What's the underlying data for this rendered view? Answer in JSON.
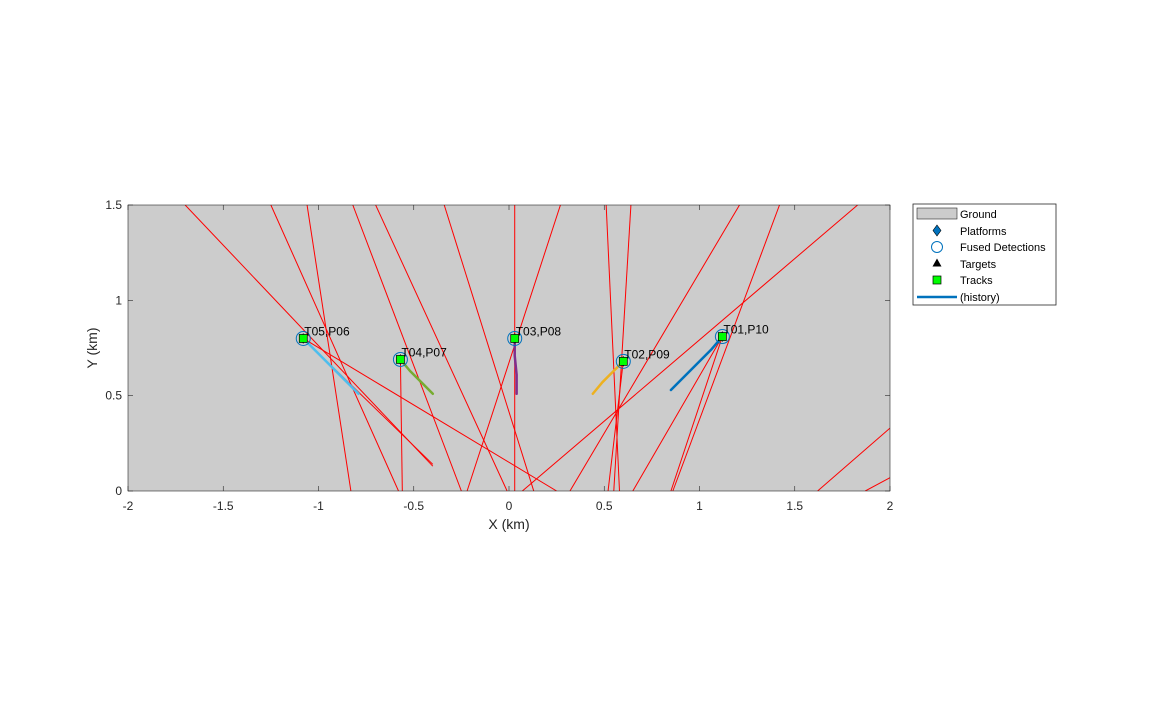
{
  "chart_data": {
    "type": "scatter",
    "xlabel": "X (km)",
    "ylabel": "Y (km)",
    "xlim": [
      -2,
      2
    ],
    "ylim": [
      0,
      1.5
    ],
    "xticks": [
      -2,
      -1.5,
      -1,
      -0.5,
      0,
      0.5,
      1,
      1.5,
      2
    ],
    "xtick_labels": [
      "-2",
      "-1.5",
      "-1",
      "-0.5",
      "0",
      "0.5",
      "1",
      "1.5",
      "2"
    ],
    "yticks": [
      0,
      0.5,
      1,
      1.5
    ],
    "ytick_labels": [
      "0",
      "0.5",
      "1",
      "1.5"
    ],
    "grid": false,
    "background_color": "#cccccc",
    "legend": {
      "placement": "outside-top-right",
      "entries": [
        "Ground",
        "Platforms",
        "Fused Detections",
        "Targets",
        "Tracks",
        "(history)"
      ]
    },
    "colors": {
      "ground": "#cccccc",
      "platform": "#0072bd",
      "fused_detection": "#0072bd",
      "track_fill": "#00ff00",
      "history_legend": "#0072bd",
      "lines_of_sight": "#ff0000"
    },
    "tracks": [
      {
        "label": "T01,P10",
        "x": 1.12,
        "y": 0.81,
        "history": [
          [
            0.85,
            0.53
          ],
          [
            0.92,
            0.6
          ],
          [
            0.99,
            0.67
          ],
          [
            1.06,
            0.74
          ],
          [
            1.12,
            0.81
          ]
        ],
        "history_color": "#0072bd"
      },
      {
        "label": "T02,P09",
        "x": 0.6,
        "y": 0.68,
        "history": [
          [
            0.44,
            0.51
          ],
          [
            0.49,
            0.57
          ],
          [
            0.55,
            0.63
          ],
          [
            0.6,
            0.68
          ]
        ],
        "history_color": "#edb120"
      },
      {
        "label": "T03,P08",
        "x": 0.03,
        "y": 0.8,
        "history": [
          [
            0.04,
            0.51
          ],
          [
            0.04,
            0.61
          ],
          [
            0.03,
            0.71
          ],
          [
            0.03,
            0.8
          ]
        ],
        "history_color": "#7e2f8e"
      },
      {
        "label": "T04,P07",
        "x": -0.57,
        "y": 0.69,
        "history": [
          [
            -0.4,
            0.51
          ],
          [
            -0.46,
            0.57
          ],
          [
            -0.52,
            0.63
          ],
          [
            -0.57,
            0.69
          ]
        ],
        "history_color": "#77ac30"
      },
      {
        "label": "T05,P06",
        "x": -1.08,
        "y": 0.8,
        "history": [
          [
            -0.79,
            0.51
          ],
          [
            -0.88,
            0.6
          ],
          [
            -0.98,
            0.7
          ],
          [
            -1.08,
            0.8
          ]
        ],
        "history_color": "#4dbeee"
      }
    ],
    "lines_of_sight": [
      [
        [
          -1.7,
          1.5
        ],
        [
          -0.4,
          0.13
        ]
      ],
      [
        [
          -1.25,
          1.5
        ],
        [
          -0.58,
          0.0
        ]
      ],
      [
        [
          -1.06,
          1.5
        ],
        [
          -0.83,
          0.0
        ]
      ],
      [
        [
          -0.82,
          1.5
        ],
        [
          -0.25,
          0.0
        ]
      ],
      [
        [
          -0.7,
          1.5
        ],
        [
          -0.01,
          0.0
        ]
      ],
      [
        [
          -0.34,
          1.5
        ],
        [
          0.13,
          0.0
        ]
      ],
      [
        [
          0.03,
          1.5
        ],
        [
          0.03,
          0.0
        ]
      ],
      [
        [
          0.27,
          1.5
        ],
        [
          -0.22,
          0.0
        ]
      ],
      [
        [
          0.51,
          1.5
        ],
        [
          0.58,
          0.0
        ]
      ],
      [
        [
          0.64,
          1.5
        ],
        [
          0.55,
          0.0
        ]
      ],
      [
        [
          1.21,
          1.5
        ],
        [
          0.32,
          0.0
        ]
      ],
      [
        [
          1.42,
          1.5
        ],
        [
          0.86,
          0.0
        ]
      ],
      [
        [
          1.83,
          1.5
        ],
        [
          0.07,
          0.0
        ]
      ],
      [
        [
          2.0,
          0.33
        ],
        [
          1.62,
          0.0
        ]
      ],
      [
        [
          2.0,
          0.07
        ],
        [
          1.87,
          0.0
        ]
      ],
      [
        [
          -0.57,
          0.69
        ],
        [
          -0.56,
          0.0
        ]
      ],
      [
        [
          -1.08,
          0.8
        ],
        [
          -0.4,
          0.14
        ]
      ],
      [
        [
          1.12,
          0.81
        ],
        [
          0.85,
          0.0
        ]
      ],
      [
        [
          1.12,
          0.81
        ],
        [
          0.65,
          0.0
        ]
      ],
      [
        [
          0.6,
          0.68
        ],
        [
          0.52,
          0.0
        ]
      ],
      [
        [
          -1.08,
          0.8
        ],
        [
          0.25,
          0.0
        ]
      ]
    ]
  }
}
